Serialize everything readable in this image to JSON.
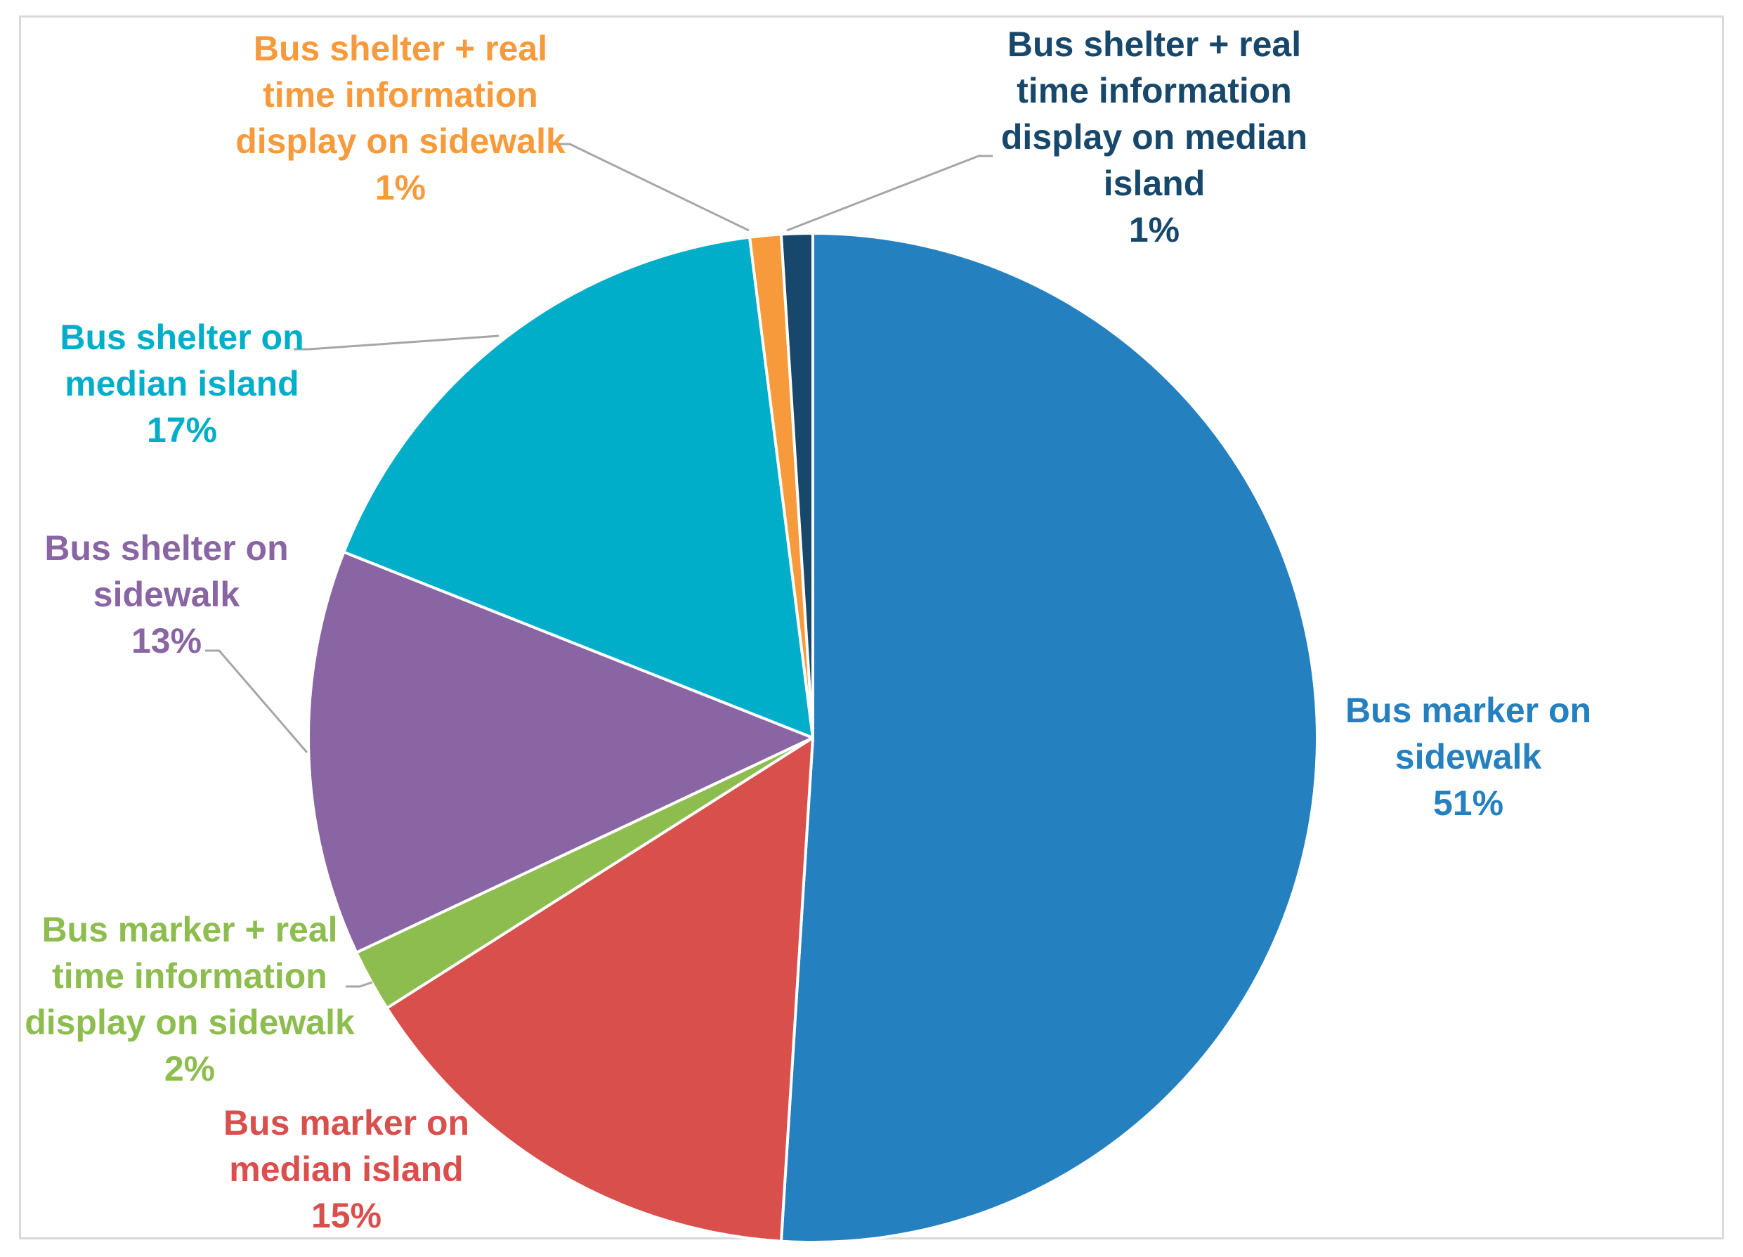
{
  "chart_data": {
    "type": "pie",
    "title": "",
    "start_angle_deg": 0,
    "direction": "clockwise",
    "slices": [
      {
        "label_lines": [
          "Bus marker on",
          "sidewalk"
        ],
        "value": 51,
        "pct_label": "51%",
        "color": "#2580c0"
      },
      {
        "label_lines": [
          "Bus marker on",
          "median island"
        ],
        "value": 15,
        "pct_label": "15%",
        "color": "#d94f4c"
      },
      {
        "label_lines": [
          "Bus marker + real",
          "time information",
          "display on sidewalk"
        ],
        "value": 2,
        "pct_label": "2%",
        "color": "#8dbd4f"
      },
      {
        "label_lines": [
          "Bus shelter on",
          "sidewalk"
        ],
        "value": 13,
        "pct_label": "13%",
        "color": "#8a65a3"
      },
      {
        "label_lines": [
          "Bus shelter on",
          "median island"
        ],
        "value": 17,
        "pct_label": "17%",
        "color": "#00aec9"
      },
      {
        "label_lines": [
          "Bus shelter + real",
          "time information",
          "display on sidewalk"
        ],
        "value": 1,
        "pct_label": "1%",
        "color": "#f79a3b"
      },
      {
        "label_lines": [
          "Bus shelter + real",
          "time information",
          "display on median",
          "island"
        ],
        "value": 1,
        "pct_label": "1%",
        "color": "#17486b"
      }
    ],
    "label_text_colors": [
      "#2580c0",
      "#d94f4c",
      "#8dbd4f",
      "#8a65a3",
      "#00aec9",
      "#f79a3b",
      "#17486b"
    ],
    "leader_line_color": "#a6a6a6"
  }
}
